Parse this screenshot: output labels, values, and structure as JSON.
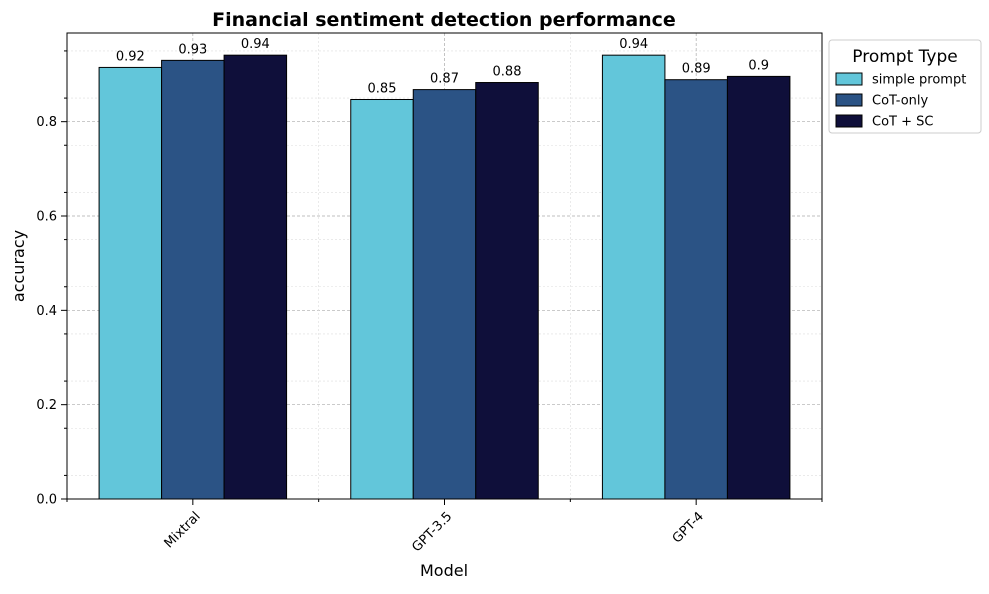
{
  "chart_data": {
    "type": "bar",
    "title": "Financial sentiment detection performance",
    "xlabel": "Model",
    "ylabel": "accuracy",
    "categories": [
      "Mixtral",
      "GPT-3.5",
      "GPT-4"
    ],
    "series": [
      {
        "name": "simple prompt",
        "values": [
          0.915,
          0.847,
          0.941
        ],
        "labels": [
          "0.92",
          "0.85",
          "0.94"
        ],
        "color": "#62C6DA"
      },
      {
        "name": "CoT-only",
        "values": [
          0.93,
          0.868,
          0.889
        ],
        "labels": [
          "0.93",
          "0.87",
          "0.89"
        ],
        "color": "#2B5385"
      },
      {
        "name": "CoT + SC",
        "values": [
          0.941,
          0.883,
          0.896
        ],
        "labels": [
          "0.94",
          "0.88",
          "0.9"
        ],
        "color": "#0F0F3A"
      }
    ],
    "ylim": [
      0,
      0.988
    ],
    "yticks": [
      0.0,
      0.2,
      0.4,
      0.6,
      0.8
    ],
    "ytick_labels": [
      "0.0",
      "0.2",
      "0.4",
      "0.6",
      "0.8"
    ],
    "legend": {
      "title": "Prompt Type",
      "placement": "outside-top-right"
    },
    "grid": true
  }
}
